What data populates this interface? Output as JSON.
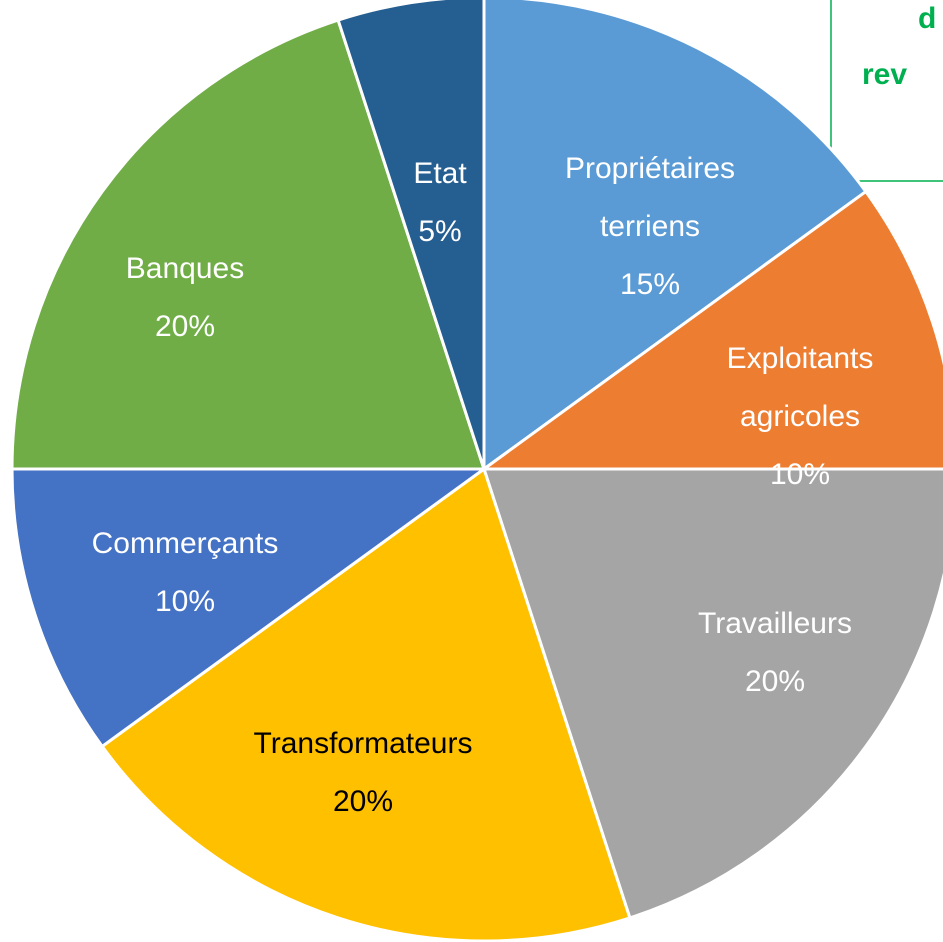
{
  "chart_data": {
    "type": "pie",
    "categories": [
      "Propriétaires terriens",
      "Exploitants agricoles",
      "Travailleurs",
      "Transformateurs",
      "Commerçants",
      "Banques",
      "Etat"
    ],
    "values": [
      15,
      10,
      20,
      20,
      10,
      20,
      5
    ],
    "value_labels": [
      "15%",
      "10%",
      "20%",
      "20%",
      "10%",
      "20%",
      "5%"
    ],
    "colors": [
      "#5b9bd5",
      "#ed7d31",
      "#a5a5a5",
      "#ffc000",
      "#4472c4",
      "#70ad47",
      "#255e91"
    ],
    "annotation": [
      "d",
      "rev"
    ]
  }
}
